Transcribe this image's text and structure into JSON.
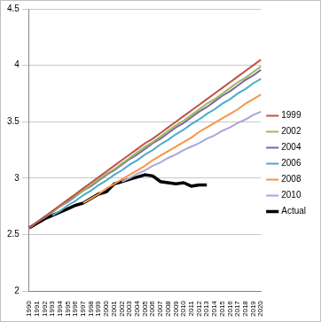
{
  "chart_data": {
    "type": "line",
    "categories": [
      "1990",
      "1991",
      "1992",
      "1993",
      "1994",
      "1995",
      "1996",
      "1997",
      "1998",
      "1999",
      "2000",
      "2001",
      "2002",
      "2003",
      "2004",
      "2005",
      "2006",
      "2007",
      "2008",
      "2009",
      "2010",
      "2011",
      "2012",
      "2013",
      "2014",
      "2015",
      "2016",
      "2017",
      "2018",
      "2019",
      "2020"
    ],
    "series": [
      {
        "name": "1999",
        "color": "#c0504d",
        "values": [
          2.56,
          2.61,
          2.66,
          2.71,
          2.76,
          2.81,
          2.86,
          2.91,
          2.96,
          3.01,
          3.06,
          3.11,
          3.16,
          3.21,
          3.26,
          3.31,
          3.35,
          3.4,
          3.45,
          3.5,
          3.55,
          3.6,
          3.65,
          3.7,
          3.75,
          3.8,
          3.85,
          3.9,
          3.95,
          4.0,
          4.05
        ]
      },
      {
        "name": "2002",
        "color": "#9bbb59",
        "values": [
          2.56,
          2.61,
          2.66,
          2.7,
          2.75,
          2.8,
          2.85,
          2.89,
          2.94,
          2.99,
          3.04,
          3.08,
          3.13,
          3.18,
          3.23,
          3.28,
          3.32,
          3.37,
          3.42,
          3.47,
          3.51,
          3.56,
          3.61,
          3.66,
          3.7,
          3.75,
          3.8,
          3.85,
          3.89,
          3.94,
          3.99
        ]
      },
      {
        "name": "2004",
        "color": "#8064a2",
        "values": [
          2.56,
          2.61,
          2.65,
          2.7,
          2.75,
          2.79,
          2.84,
          2.89,
          2.93,
          2.98,
          3.03,
          3.07,
          3.12,
          3.17,
          3.21,
          3.26,
          3.31,
          3.35,
          3.4,
          3.45,
          3.49,
          3.54,
          3.59,
          3.63,
          3.68,
          3.73,
          3.77,
          3.82,
          3.87,
          3.91,
          3.96
        ]
      },
      {
        "name": "2006",
        "color": "#4bacc6",
        "values": [
          null,
          null,
          null,
          2.67,
          2.71,
          2.76,
          2.8,
          2.85,
          2.89,
          2.94,
          2.98,
          3.03,
          3.07,
          3.12,
          3.16,
          3.21,
          3.25,
          3.3,
          3.34,
          3.39,
          3.43,
          3.48,
          3.52,
          3.57,
          3.61,
          3.66,
          3.7,
          3.75,
          3.79,
          3.84,
          3.88
        ]
      },
      {
        "name": "2008",
        "color": "#f79646",
        "values": [
          null,
          null,
          null,
          null,
          null,
          null,
          null,
          2.78,
          2.82,
          2.86,
          2.91,
          2.95,
          2.99,
          3.03,
          3.07,
          3.11,
          3.16,
          3.2,
          3.24,
          3.28,
          3.32,
          3.36,
          3.41,
          3.45,
          3.49,
          3.53,
          3.57,
          3.61,
          3.66,
          3.7,
          3.74
        ]
      },
      {
        "name": "2010",
        "color": "#a9a6d8",
        "values": [
          null,
          null,
          null,
          null,
          null,
          null,
          null,
          null,
          null,
          null,
          null,
          null,
          2.97,
          3.0,
          3.04,
          3.07,
          3.11,
          3.14,
          3.18,
          3.21,
          3.25,
          3.28,
          3.31,
          3.35,
          3.38,
          3.42,
          3.45,
          3.49,
          3.52,
          3.56,
          3.59
        ]
      },
      {
        "name": "Actual",
        "color": "#000000",
        "values": [
          2.56,
          2.6,
          2.64,
          2.67,
          2.7,
          2.73,
          2.76,
          2.78,
          2.82,
          2.86,
          2.88,
          2.95,
          2.97,
          2.99,
          3.01,
          3.03,
          3.02,
          2.97,
          2.96,
          2.95,
          2.96,
          2.93,
          2.94,
          2.94,
          null,
          null,
          null,
          null,
          null,
          null,
          null
        ]
      }
    ],
    "ylim": [
      2,
      4.5
    ],
    "yticks": [
      2,
      2.5,
      3,
      3.5,
      4,
      4.5
    ],
    "grid": true,
    "legend": "right"
  }
}
